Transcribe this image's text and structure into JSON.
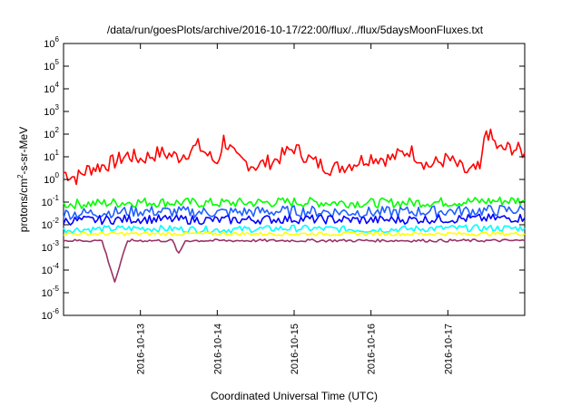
{
  "chart_data": {
    "type": "line",
    "title": "/data/run/goesPlots/archive/2016-10-17/22:00/flux/../flux/5daysMoonFluxes.txt",
    "xlabel": "Coordinated Universal Time (UTC)",
    "ylabel": "protons/cm2-s-sr-MeV",
    "ylabel_parts": {
      "before": "protons/cm",
      "sup": "2",
      "after": "-s-sr-MeV"
    },
    "y_scale": "log",
    "ylim": [
      1e-06,
      1000000.0
    ],
    "y_ticks": [
      {
        "base": "10",
        "exp": "-6",
        "value": 1e-06
      },
      {
        "base": "10",
        "exp": "-5",
        "value": 1e-05
      },
      {
        "base": "10",
        "exp": "-4",
        "value": 0.0001
      },
      {
        "base": "10",
        "exp": "-3",
        "value": 0.001
      },
      {
        "base": "10",
        "exp": "-2",
        "value": 0.01
      },
      {
        "base": "10",
        "exp": "-1",
        "value": 0.1
      },
      {
        "base": "10",
        "exp": "0",
        "value": 1
      },
      {
        "base": "10",
        "exp": "1",
        "value": 10
      },
      {
        "base": "10",
        "exp": "2",
        "value": 100
      },
      {
        "base": "10",
        "exp": "3",
        "value": 1000
      },
      {
        "base": "10",
        "exp": "4",
        "value": 10000
      },
      {
        "base": "10",
        "exp": "5",
        "value": 100000
      },
      {
        "base": "10",
        "exp": "6",
        "value": 1000000
      }
    ],
    "xlim": [
      "2016-10-12 00:00",
      "2016-10-18 00:00"
    ],
    "x_ticks": [
      "2016-10-13",
      "2016-10-14",
      "2016-10-15",
      "2016-10-16",
      "2016-10-17"
    ],
    "grid": false,
    "series": [
      {
        "color": "#ff0000",
        "x": [
          "2016-10-12 00:00",
          "2016-10-12 04:00",
          "2016-10-12 08:00",
          "2016-10-12 12:00",
          "2016-10-12 16:00",
          "2016-10-12 20:00",
          "2016-10-13 00:00",
          "2016-10-13 06:00",
          "2016-10-13 12:00",
          "2016-10-13 18:00",
          "2016-10-14 00:00",
          "2016-10-14 02:00",
          "2016-10-14 06:00",
          "2016-10-14 12:00",
          "2016-10-14 18:00",
          "2016-10-15 00:00",
          "2016-10-15 06:00",
          "2016-10-15 12:00",
          "2016-10-15 18:00",
          "2016-10-16 00:00",
          "2016-10-16 06:00",
          "2016-10-16 12:00",
          "2016-10-16 18:00",
          "2016-10-17 00:00",
          "2016-10-17 06:00",
          "2016-10-17 10:00",
          "2016-10-17 12:00",
          "2016-10-17 16:00",
          "2016-10-17 20:00",
          "2016-10-18 00:00"
        ],
        "y": [
          2,
          1.2,
          3,
          4,
          6,
          12,
          8,
          15,
          10,
          30,
          5,
          60,
          8,
          4,
          7,
          25,
          6,
          3,
          5,
          10,
          8,
          20,
          4,
          8,
          2,
          3,
          150,
          20,
          25,
          15
        ]
      },
      {
        "color": "#00ff00",
        "x": [
          "2016-10-12 00:00",
          "2016-10-13 00:00",
          "2016-10-14 00:00",
          "2016-10-15 00:00",
          "2016-10-16 00:00",
          "2016-10-17 00:00",
          "2016-10-18 00:00"
        ],
        "y": [
          0.08,
          0.1,
          0.09,
          0.1,
          0.09,
          0.1,
          0.12
        ]
      },
      {
        "color": "#00ffff",
        "x": [
          "2016-10-12 00:00",
          "2016-10-13 00:00",
          "2016-10-14 00:00",
          "2016-10-15 00:00",
          "2016-10-16 00:00",
          "2016-10-17 00:00",
          "2016-10-18 00:00"
        ],
        "y": [
          0.006,
          0.007,
          0.006,
          0.007,
          0.006,
          0.007,
          0.007
        ]
      },
      {
        "color": "#2060ff",
        "x": [
          "2016-10-12 00:00",
          "2016-10-13 00:00",
          "2016-10-14 00:00",
          "2016-10-15 00:00",
          "2016-10-16 00:00",
          "2016-10-17 00:00",
          "2016-10-18 00:00"
        ],
        "y": [
          0.03,
          0.04,
          0.035,
          0.04,
          0.035,
          0.04,
          0.045
        ]
      },
      {
        "color": "#0000ff",
        "x": [
          "2016-10-12 00:00",
          "2016-10-13 00:00",
          "2016-10-14 00:00",
          "2016-10-15 00:00",
          "2016-10-16 00:00",
          "2016-10-17 00:00",
          "2016-10-18 00:00"
        ],
        "y": [
          0.015,
          0.018,
          0.016,
          0.018,
          0.016,
          0.018,
          0.02
        ]
      },
      {
        "color": "#ffff00",
        "x": [
          "2016-10-12 00:00",
          "2016-10-13 00:00",
          "2016-10-14 00:00",
          "2016-10-15 00:00",
          "2016-10-16 00:00",
          "2016-10-17 00:00",
          "2016-10-18 00:00"
        ],
        "y": [
          0.004,
          0.004,
          0.004,
          0.004,
          0.004,
          0.004,
          0.004
        ]
      },
      {
        "color": "#993366",
        "x": [
          "2016-10-12 00:00",
          "2016-10-12 12:00",
          "2016-10-12 16:00",
          "2016-10-12 20:00",
          "2016-10-13 00:00",
          "2016-10-13 10:00",
          "2016-10-13 12:00",
          "2016-10-13 14:00",
          "2016-10-14 00:00",
          "2016-10-15 00:00",
          "2016-10-16 00:00",
          "2016-10-17 00:00",
          "2016-10-18 00:00"
        ],
        "y": [
          0.002,
          0.002,
          3e-05,
          0.002,
          0.002,
          0.002,
          0.0005,
          0.002,
          0.002,
          0.002,
          0.002,
          0.002,
          0.002
        ]
      }
    ]
  }
}
